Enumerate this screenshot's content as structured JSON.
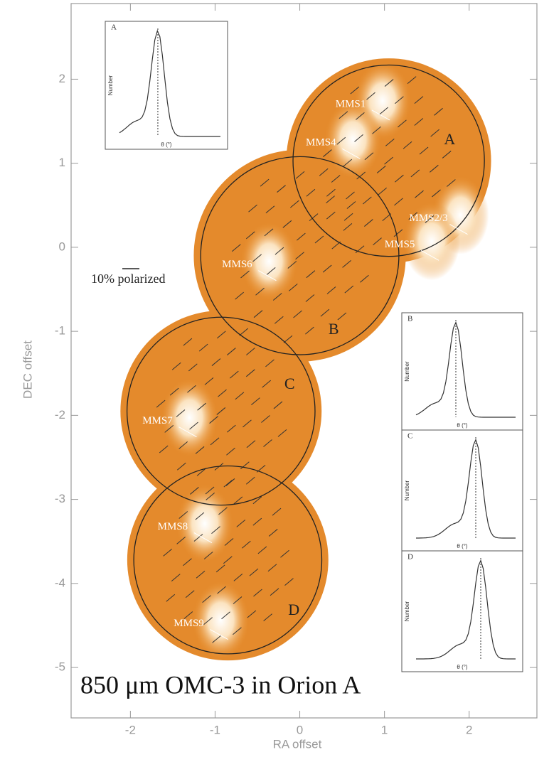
{
  "chart_data": {
    "type": "map",
    "title": "850 μm OMC-3 in Orion A",
    "xlabel": "RA offset",
    "ylabel": "DEC offset",
    "xlim": [
      -2.7,
      2.8
    ],
    "xticks": [
      -2,
      -1,
      0,
      1,
      2
    ],
    "ylim": [
      -5.6,
      2.9
    ],
    "yticks": [
      2,
      1,
      0,
      -1,
      -2,
      -3,
      -4,
      -5
    ],
    "scale_label": "10% polarized",
    "regions": [
      {
        "name": "A",
        "x": 1.05,
        "y": 1.03,
        "r": 1.13,
        "label_x": 1.77,
        "label_y": 1.27
      },
      {
        "name": "B",
        "x": 0.0,
        "y": -0.1,
        "r": 1.17,
        "label_x": 0.4,
        "label_y": -0.99
      },
      {
        "name": "C",
        "x": -0.93,
        "y": -1.95,
        "r": 1.11,
        "label_x": -0.12,
        "label_y": -1.64
      },
      {
        "name": "D",
        "x": -0.85,
        "y": -3.72,
        "r": 1.11,
        "label_x": -0.07,
        "label_y": -4.33
      }
    ],
    "sources": [
      {
        "name": "MMS1",
        "x": 0.6,
        "y": 1.7
      },
      {
        "name": "MMS4",
        "x": 0.25,
        "y": 1.24
      },
      {
        "name": "MMS2/3",
        "x": 1.52,
        "y": 0.34
      },
      {
        "name": "MMS5",
        "x": 1.18,
        "y": 0.03
      },
      {
        "name": "MMS6",
        "x": -0.74,
        "y": -0.21
      },
      {
        "name": "MMS7",
        "x": -1.68,
        "y": -2.07
      },
      {
        "name": "MMS8",
        "x": -1.5,
        "y": -3.33
      },
      {
        "name": "MMS9",
        "x": -1.31,
        "y": -4.48
      }
    ],
    "insets": [
      {
        "label": "A",
        "ylabel": "Number",
        "xlabel": "θ (°)"
      },
      {
        "label": "B",
        "ylabel": "Number",
        "xlabel": "θ (°)"
      },
      {
        "label": "C",
        "ylabel": "Number",
        "xlabel": "θ (°)"
      },
      {
        "label": "D",
        "ylabel": "Number",
        "xlabel": "θ (°)"
      }
    ]
  }
}
